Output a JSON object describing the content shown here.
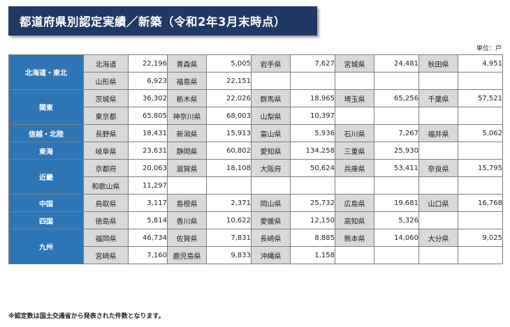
{
  "title": "都道府県別認定実績／新築（令和2年3月末時点）",
  "unit": "単位：戸",
  "note": "※認定数は国土交通省から発表された件数となります。",
  "regions": [
    {
      "name": "北海道・東北",
      "rows": [
        [
          {
            "pref": "北海道",
            "value": "22,196"
          },
          {
            "pref": "青森県",
            "value": "5,005"
          },
          {
            "pref": "岩手県",
            "value": "7,627"
          },
          {
            "pref": "宮城県",
            "value": "24,481"
          },
          {
            "pref": "秋田県",
            "value": "4,951"
          }
        ],
        [
          {
            "pref": "山形県",
            "value": "6,923"
          },
          {
            "pref": "福島県",
            "value": "22,151"
          }
        ]
      ]
    },
    {
      "name": "関東",
      "rows": [
        [
          {
            "pref": "茨城県",
            "value": "36,302"
          },
          {
            "pref": "栃木県",
            "value": "22,026"
          },
          {
            "pref": "群馬県",
            "value": "18,965"
          },
          {
            "pref": "埼玉県",
            "value": "65,256"
          },
          {
            "pref": "千葉県",
            "value": "57,521"
          }
        ],
        [
          {
            "pref": "東京都",
            "value": "65,805"
          },
          {
            "pref": "神奈川県",
            "value": "68,003"
          },
          {
            "pref": "山梨県",
            "value": "10,397"
          }
        ]
      ]
    },
    {
      "name": "信越・北陸",
      "rows": [
        [
          {
            "pref": "長野県",
            "value": "18,431"
          },
          {
            "pref": "新潟県",
            "value": "15,913"
          },
          {
            "pref": "富山県",
            "value": "5,936"
          },
          {
            "pref": "石川県",
            "value": "7,267"
          },
          {
            "pref": "福井県",
            "value": "5,062"
          }
        ]
      ]
    },
    {
      "name": "東海",
      "rows": [
        [
          {
            "pref": "岐阜県",
            "value": "23,631"
          },
          {
            "pref": "静岡県",
            "value": "60,802"
          },
          {
            "pref": "愛知県",
            "value": "134,258"
          },
          {
            "pref": "三重県",
            "value": "25,930"
          }
        ]
      ]
    },
    {
      "name": "近畿",
      "rows": [
        [
          {
            "pref": "京都府",
            "value": "20,063"
          },
          {
            "pref": "滋賀県",
            "value": "18,108"
          },
          {
            "pref": "大阪府",
            "value": "50,624"
          },
          {
            "pref": "兵庫県",
            "value": "53,411"
          },
          {
            "pref": "奈良県",
            "value": "15,795"
          }
        ],
        [
          {
            "pref": "和歌山県",
            "value": "11,297"
          }
        ]
      ]
    },
    {
      "name": "中国",
      "rows": [
        [
          {
            "pref": "鳥取県",
            "value": "3,117"
          },
          {
            "pref": "島根県",
            "value": "2,371"
          },
          {
            "pref": "岡山県",
            "value": "25,732"
          },
          {
            "pref": "広島県",
            "value": "19,681"
          },
          {
            "pref": "山口県",
            "value": "16,768"
          }
        ]
      ]
    },
    {
      "name": "四国",
      "rows": [
        [
          {
            "pref": "徳島県",
            "value": "5,814"
          },
          {
            "pref": "香川県",
            "value": "10,622"
          },
          {
            "pref": "愛媛県",
            "value": "12,150"
          },
          {
            "pref": "高知県",
            "value": "5,326"
          }
        ]
      ]
    },
    {
      "name": "九州",
      "rows": [
        [
          {
            "pref": "福岡県",
            "value": "46,734"
          },
          {
            "pref": "佐賀県",
            "value": "7,831"
          },
          {
            "pref": "長崎県",
            "value": "8,885"
          },
          {
            "pref": "熊本県",
            "value": "14,060"
          },
          {
            "pref": "大分県",
            "value": "9,025"
          }
        ],
        [
          {
            "pref": "宮崎県",
            "value": "7,160"
          },
          {
            "pref": "鹿児島県",
            "value": "9,833"
          },
          {
            "pref": "沖縄県",
            "value": "1,158"
          }
        ]
      ]
    }
  ]
}
